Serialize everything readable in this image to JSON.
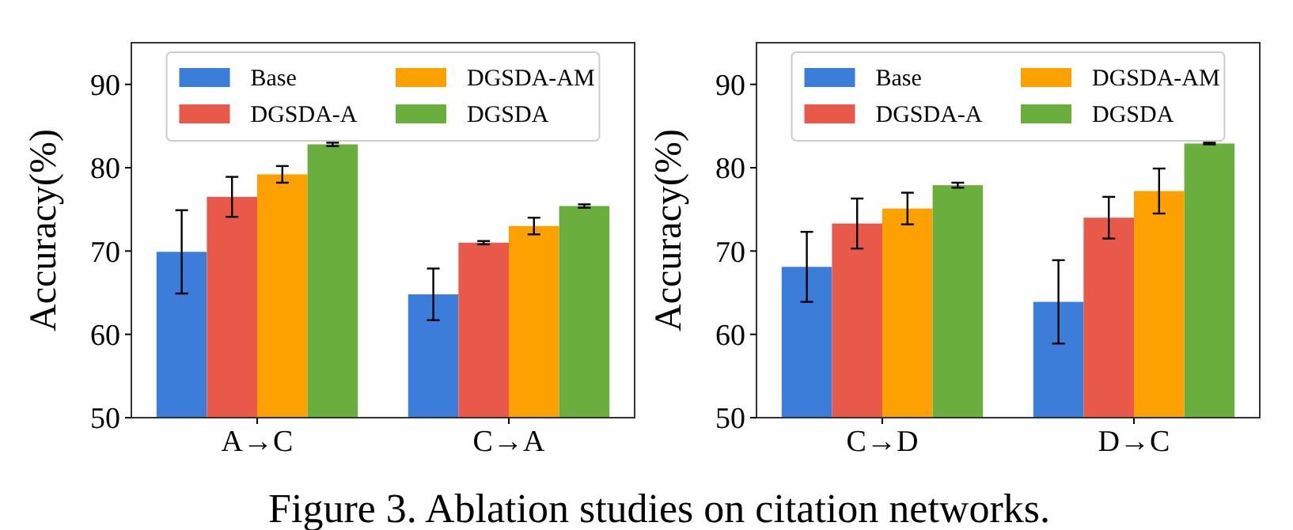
{
  "chart_data": [
    {
      "type": "bar",
      "ylabel": "Accuracy(%)",
      "categories": [
        "A→C",
        "C→A"
      ],
      "ylim": [
        50,
        95
      ],
      "yticks": [
        50,
        60,
        70,
        80,
        90
      ],
      "legend": "top",
      "grid": false,
      "series": [
        {
          "name": "Base",
          "color": "#3b7dd8",
          "values": [
            69.9,
            64.8
          ],
          "errors": [
            5,
            3.1
          ]
        },
        {
          "name": "DGSDA-A",
          "color": "#e8594a",
          "values": [
            76.5,
            71.0
          ],
          "errors": [
            2.4,
            0.2
          ]
        },
        {
          "name": "DGSDA-AM",
          "color": "#fda100",
          "values": [
            79.2,
            73.0
          ],
          "errors": [
            1,
            1
          ]
        },
        {
          "name": "DGSDA",
          "color": "#6aaf3d",
          "values": [
            82.8,
            75.4
          ],
          "errors": [
            0.2,
            0.2
          ]
        }
      ],
      "annotations": [
        "Figure 3. Ablation studies on citation networks."
      ]
    },
    {
      "type": "bar",
      "ylabel": "Accuracy(%)",
      "categories": [
        "C→D",
        "D→C"
      ],
      "ylim": [
        50,
        95
      ],
      "yticks": [
        50,
        60,
        70,
        80,
        90
      ],
      "legend": "top",
      "grid": false,
      "series": [
        {
          "name": "Base",
          "color": "#3b7dd8",
          "values": [
            68.1,
            63.9
          ],
          "errors": [
            4.2,
            5
          ]
        },
        {
          "name": "DGSDA-A",
          "color": "#e8594a",
          "values": [
            73.3,
            74.0
          ],
          "errors": [
            3,
            2.5
          ]
        },
        {
          "name": "DGSDA-AM",
          "color": "#fda100",
          "values": [
            75.1,
            77.2
          ],
          "errors": [
            1.9,
            2.7
          ]
        },
        {
          "name": "DGSDA",
          "color": "#6aaf3d",
          "values": [
            77.9,
            82.9
          ],
          "errors": [
            0.3,
            0.1
          ]
        }
      ]
    }
  ]
}
